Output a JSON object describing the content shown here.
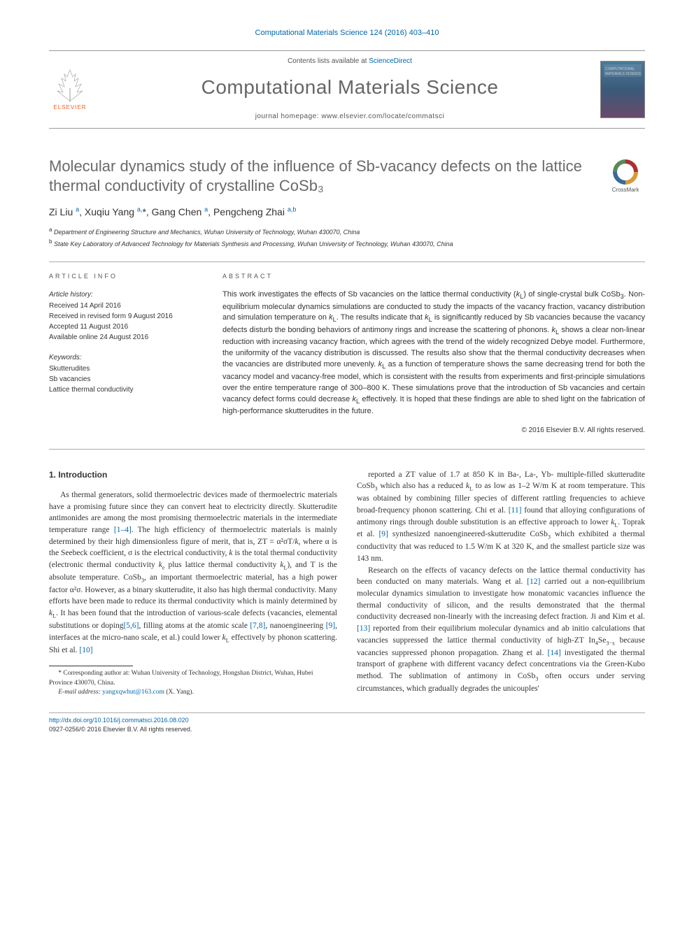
{
  "journal_ref": "Computational Materials Science 124 (2016) 403–410",
  "header": {
    "contents_line_prefix": "Contents lists available at ",
    "contents_link": "ScienceDirect",
    "journal_name": "Computational Materials Science",
    "homepage_label": "journal homepage: ",
    "homepage_url": "www.elsevier.com/locate/commatsci",
    "publisher": "ELSEVIER",
    "cover_title": "COMPUTATIONAL MATERIALS SCIENCE"
  },
  "crossmark_label": "CrossMark",
  "title": "Molecular dynamics study of the influence of Sb-vacancy defects on the lattice thermal conductivity of crystalline CoSb₃",
  "authors_html": "Zi Liu <sup>a</sup>, Xuqiu Yang <sup>a,</sup>*, Gang Chen <sup>a</sup>, Pengcheng Zhai <sup>a,b</sup>",
  "affiliations": [
    {
      "sup": "a",
      "text": "Department of Engineering Structure and Mechanics, Wuhan University of Technology, Wuhan 430070, China"
    },
    {
      "sup": "b",
      "text": "State Key Laboratory of Advanced Technology for Materials Synthesis and Processing, Wuhan University of Technology, Wuhan 430070, China"
    }
  ],
  "article_info": {
    "label": "ARTICLE INFO",
    "history_title": "Article history:",
    "history": [
      "Received 14 April 2016",
      "Received in revised form 9 August 2016",
      "Accepted 11 August 2016",
      "Available online 24 August 2016"
    ],
    "keywords_title": "Keywords:",
    "keywords": [
      "Skutterudites",
      "Sb vacancies",
      "Lattice thermal conductivity"
    ]
  },
  "abstract": {
    "label": "ABSTRACT",
    "text_html": "This work investigates the effects of Sb vacancies on the lattice thermal conductivity (<em>k</em><sub>L</sub>) of single-crystal bulk CoSb<sub>3</sub>. Non-equilibrium molecular dynamics simulations are conducted to study the impacts of the vacancy fraction, vacancy distribution and simulation temperature on <em>k</em><sub>L</sub>. The results indicate that <em>k</em><sub>L</sub> is significantly reduced by Sb vacancies because the vacancy defects disturb the bonding behaviors of antimony rings and increase the scattering of phonons. <em>k</em><sub>L</sub> shows a clear non-linear reduction with increasing vacancy fraction, which agrees with the trend of the widely recognized Debye model. Furthermore, the uniformity of the vacancy distribution is discussed. The results also show that the thermal conductivity decreases when the vacancies are distributed more unevenly. <em>k</em><sub>L</sub> as a function of temperature shows the same decreasing trend for both the vacancy model and vacancy-free model, which is consistent with the results from experiments and first-principle simulations over the entire temperature range of 300–800 K. These simulations prove that the introduction of Sb vacancies and certain vacancy defect forms could decrease <em>k</em><sub>L</sub> effectively. It is hoped that these findings are able to shed light on the fabrication of high-performance skutterudites in the future.",
    "copyright": "© 2016 Elsevier B.V. All rights reserved."
  },
  "body": {
    "heading": "1. Introduction",
    "p1_html": "As thermal generators, solid thermoelectric devices made of thermoelectric materials have a promising future since they can convert heat to electricity directly. Skutterudite antimonides are among the most promising thermoelectric materials in the intermediate temperature range <a href=\"#\">[1–4]</a>. The high efficiency of thermoelectric materials is mainly determined by their high dimensionless figure of merit, that is, ZT = α²σT/<em>k</em>, where α is the Seebeck coefficient, σ is the electrical conductivity, <em>k</em> is the total thermal conductivity (electronic thermal conductivity <em>k</em><sub>e</sub> plus lattice thermal conductivity <em>k</em><sub>L</sub>), and T is the absolute temperature. CoSb<sub>3</sub>, an important thermoelectric material, has a high power factor α²σ. However, as a binary skutterudite, it also has high thermal conductivity. Many efforts have been made to reduce its thermal conductivity which is mainly determined by <em>k</em><sub>L</sub>. It has been found that the introduction of various-scale defects (vacancies, elemental substitutions or doping<a href=\"#\">[5,6]</a>, filling atoms at the atomic scale <a href=\"#\">[7,8]</a>, nanoengineering <a href=\"#\">[9]</a>, interfaces at the micro-nano scale, et al.) could lower <em>k</em><sub>L</sub> effectively by phonon scattering. Shi et al. <a href=\"#\">[10]</a>",
    "p2_html": "reported a ZT value of 1.7 at 850 K in Ba-, La-, Yb- multiple-filled skutterudite CoSb<sub>3</sub> which also has a reduced <em>k</em><sub>L</sub> to as low as 1–2 W/m K at room temperature. This was obtained by combining filler species of different rattling frequencies to achieve broad-frequency phonon scattering. Chi et al. <a href=\"#\">[11]</a> found that alloying configurations of antimony rings through double substitution is an effective approach to lower <em>k</em><sub>L</sub>. Toprak et al. <a href=\"#\">[9]</a> synthesized nanoengineered-skutterudite CoSb<sub>3</sub> which exhibited a thermal conductivity that was reduced to 1.5 W/m K at 320 K, and the smallest particle size was 143 nm.",
    "p3_html": "Research on the effects of vacancy defects on the lattice thermal conductivity has been conducted on many materials. Wang et al. <a href=\"#\">[12]</a> carried out a non-equilibrium molecular dynamics simulation to investigate how monatomic vacancies influence the thermal conductivity of silicon, and the results demonstrated that the thermal conductivity decreased non-linearly with the increasing defect fraction. Ji and Kim et al. <a href=\"#\">[13]</a> reported from their equilibrium molecular dynamics and ab initio calculations that vacancies suppressed the lattice thermal conductivity of high-ZT In<sub>4</sub>Se<sub>3−x</sub> because vacancies suppressed phonon propagation. Zhang et al. <a href=\"#\">[14]</a> investigated the thermal transport of graphene with different vacancy defect concentrations via the Green-Kubo method. The sublimation of antimony in CoSb<sub>3</sub> often occurs under serving circumstances, which gradually degrades the unicouples'"
  },
  "corr": {
    "star": "*",
    "text": "Corresponding author at: Wuhan University of Technology, Hongshan District, Wuhan, Hubei Province 430070, China.",
    "email_label": "E-mail address:",
    "email": "yangxqwhut@163.com",
    "email_who": "(X. Yang)."
  },
  "footer": {
    "doi": "http://dx.doi.org/10.1016/j.commatsci.2016.08.020",
    "issn_line": "0927-0256/© 2016 Elsevier B.V. All rights reserved."
  },
  "colors": {
    "link": "#0066aa",
    "heading_gray": "#6a6a6a",
    "elsevier_orange": "#e8631b"
  }
}
